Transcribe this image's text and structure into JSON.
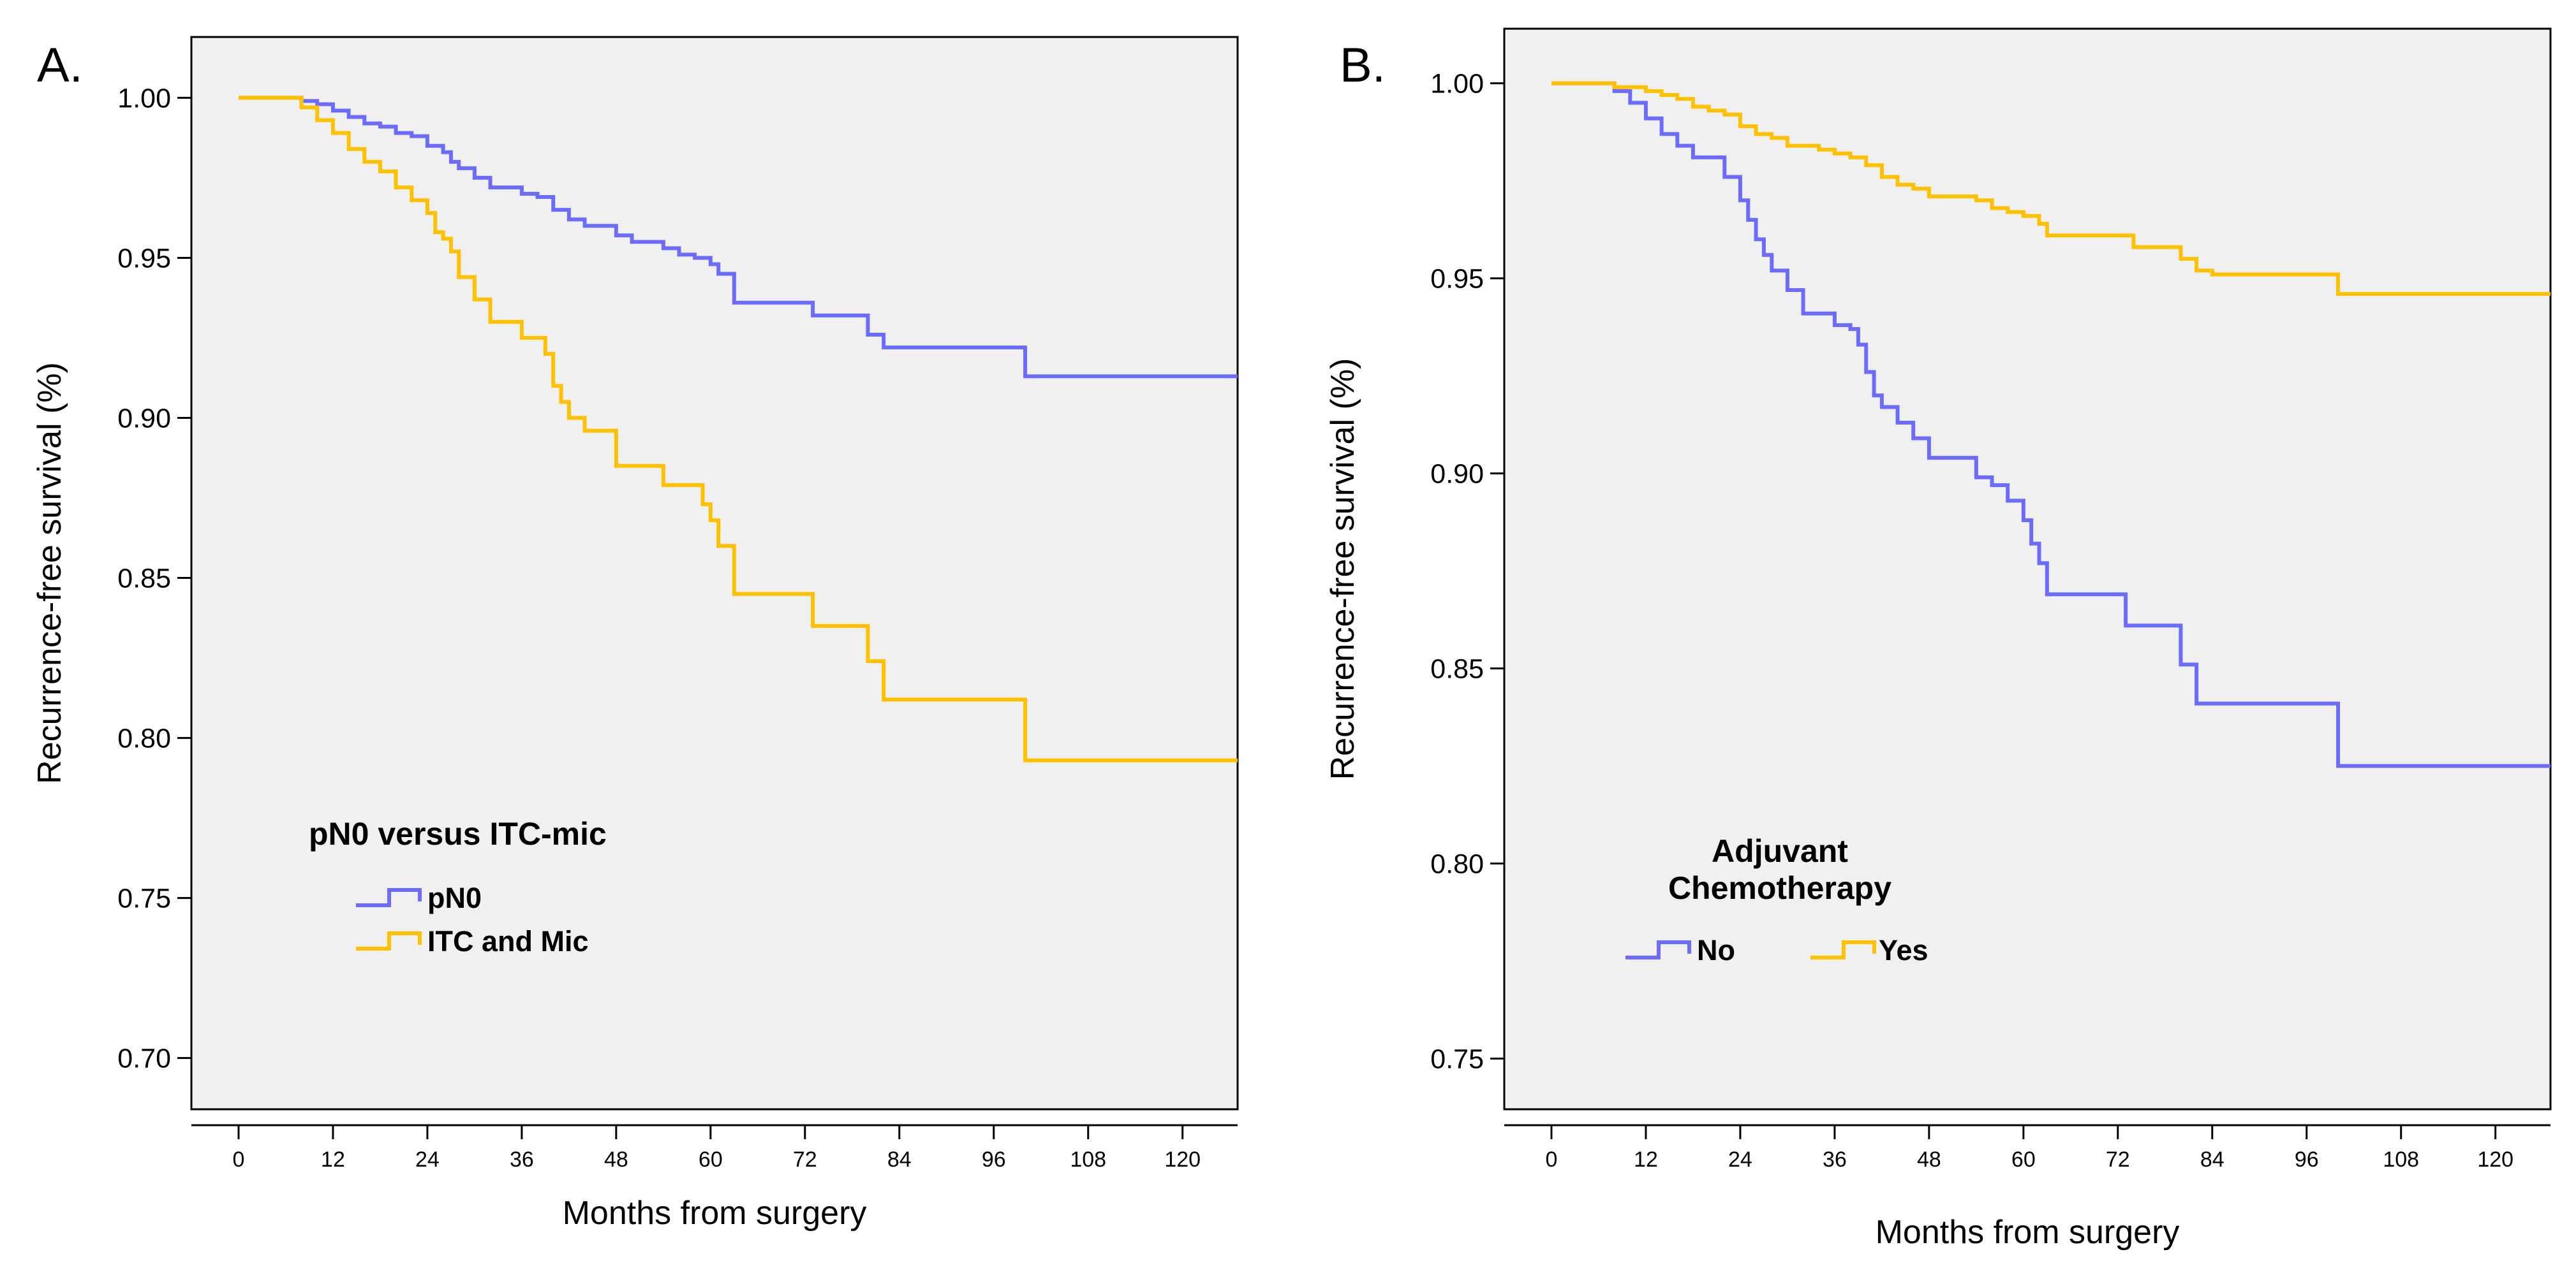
{
  "chart_data": [
    {
      "type": "line",
      "panel_label": "A.",
      "title": "",
      "xlabel": "Months from surgery",
      "ylabel": "Recurrence-free survival (%)",
      "xlim": [
        -6,
        127
      ],
      "ylim": [
        0.684,
        1.019
      ],
      "xticks": [
        "0",
        "12",
        "24",
        "36",
        "48",
        "60",
        "72",
        "84",
        "96",
        "108",
        "120"
      ],
      "yticks": [
        "0.70",
        "0.75",
        "0.80",
        "0.85",
        "0.90",
        "0.95",
        "1.00"
      ],
      "grid": false,
      "legend": {
        "title": "pN0 versus ITC-mic",
        "position": "bottom-left",
        "orientation": "vertical",
        "entries": [
          "pN0",
          "ITC and Mic"
        ]
      },
      "series": [
        {
          "name": "pN0",
          "color": "#6b6bff",
          "x": [
            0,
            8,
            10,
            12,
            14,
            16,
            18,
            20,
            22,
            24,
            26,
            27,
            28,
            30,
            32,
            34,
            36,
            38,
            40,
            42,
            44,
            48,
            50,
            54,
            56,
            58,
            60,
            61,
            63,
            72,
            73,
            80,
            82,
            84,
            96,
            100,
            127
          ],
          "y": [
            1.0,
            0.999,
            0.998,
            0.996,
            0.994,
            0.992,
            0.991,
            0.989,
            0.988,
            0.985,
            0.983,
            0.98,
            0.978,
            0.975,
            0.972,
            0.972,
            0.97,
            0.969,
            0.965,
            0.962,
            0.96,
            0.957,
            0.955,
            0.953,
            0.951,
            0.95,
            0.948,
            0.945,
            0.936,
            0.936,
            0.932,
            0.926,
            0.922,
            0.922,
            0.922,
            0.913,
            0.913
          ]
        },
        {
          "name": "ITC and Mic",
          "color": "#ffc000",
          "x": [
            0,
            8,
            10,
            12,
            14,
            16,
            18,
            20,
            22,
            24,
            25,
            26,
            27,
            28,
            30,
            32,
            36,
            39,
            40,
            41,
            42,
            44,
            48,
            50,
            54,
            58,
            59,
            60,
            61,
            63,
            72,
            73,
            80,
            82,
            84,
            96,
            100,
            127
          ],
          "y": [
            1.0,
            0.997,
            0.993,
            0.989,
            0.984,
            0.98,
            0.977,
            0.972,
            0.968,
            0.964,
            0.958,
            0.956,
            0.952,
            0.944,
            0.937,
            0.93,
            0.925,
            0.92,
            0.91,
            0.905,
            0.9,
            0.896,
            0.885,
            0.885,
            0.879,
            0.879,
            0.873,
            0.868,
            0.86,
            0.845,
            0.845,
            0.835,
            0.824,
            0.812,
            0.812,
            0.812,
            0.793,
            0.793
          ]
        }
      ]
    },
    {
      "type": "line",
      "panel_label": "B.",
      "title": "",
      "xlabel": "Months from surgery",
      "ylabel": "Recurrence-free survival (%)",
      "xlim": [
        -6,
        127
      ],
      "ylim": [
        0.737,
        1.014
      ],
      "xticks": [
        "0",
        "12",
        "24",
        "36",
        "48",
        "60",
        "72",
        "84",
        "96",
        "108",
        "120"
      ],
      "yticks": [
        "0.75",
        "0.80",
        "0.85",
        "0.90",
        "0.95",
        "1.00"
      ],
      "grid": false,
      "legend": {
        "title": "Adjuvant Chemotherapy",
        "position": "bottom-left",
        "orientation": "horizontal",
        "entries": [
          "No",
          "Yes"
        ]
      },
      "series": [
        {
          "name": "No",
          "color": "#6b6bff",
          "x": [
            0,
            8,
            10,
            12,
            14,
            16,
            18,
            20,
            22,
            24,
            25,
            26,
            27,
            28,
            30,
            32,
            34,
            36,
            38,
            39,
            40,
            41,
            42,
            44,
            46,
            48,
            50,
            54,
            56,
            58,
            60,
            61,
            62,
            63,
            72,
            73,
            80,
            82,
            84,
            96,
            100,
            127
          ],
          "y": [
            1.0,
            0.998,
            0.995,
            0.991,
            0.987,
            0.984,
            0.981,
            0.981,
            0.976,
            0.97,
            0.965,
            0.96,
            0.956,
            0.952,
            0.947,
            0.941,
            0.941,
            0.938,
            0.937,
            0.933,
            0.926,
            0.92,
            0.917,
            0.913,
            0.909,
            0.904,
            0.904,
            0.899,
            0.897,
            0.893,
            0.888,
            0.882,
            0.877,
            0.869,
            0.869,
            0.861,
            0.851,
            0.841,
            0.841,
            0.841,
            0.825,
            0.825
          ]
        },
        {
          "name": "Yes",
          "color": "#ffc000",
          "x": [
            0,
            8,
            12,
            14,
            16,
            18,
            20,
            22,
            24,
            26,
            28,
            30,
            34,
            36,
            38,
            40,
            42,
            44,
            46,
            48,
            52,
            54,
            56,
            58,
            60,
            62,
            63,
            72,
            74,
            80,
            82,
            84,
            96,
            100,
            127
          ],
          "y": [
            1.0,
            0.999,
            0.998,
            0.997,
            0.996,
            0.994,
            0.993,
            0.992,
            0.989,
            0.987,
            0.986,
            0.984,
            0.983,
            0.982,
            0.981,
            0.979,
            0.976,
            0.974,
            0.973,
            0.971,
            0.971,
            0.97,
            0.968,
            0.967,
            0.966,
            0.964,
            0.961,
            0.961,
            0.958,
            0.955,
            0.952,
            0.951,
            0.951,
            0.946,
            0.946
          ]
        }
      ]
    }
  ]
}
